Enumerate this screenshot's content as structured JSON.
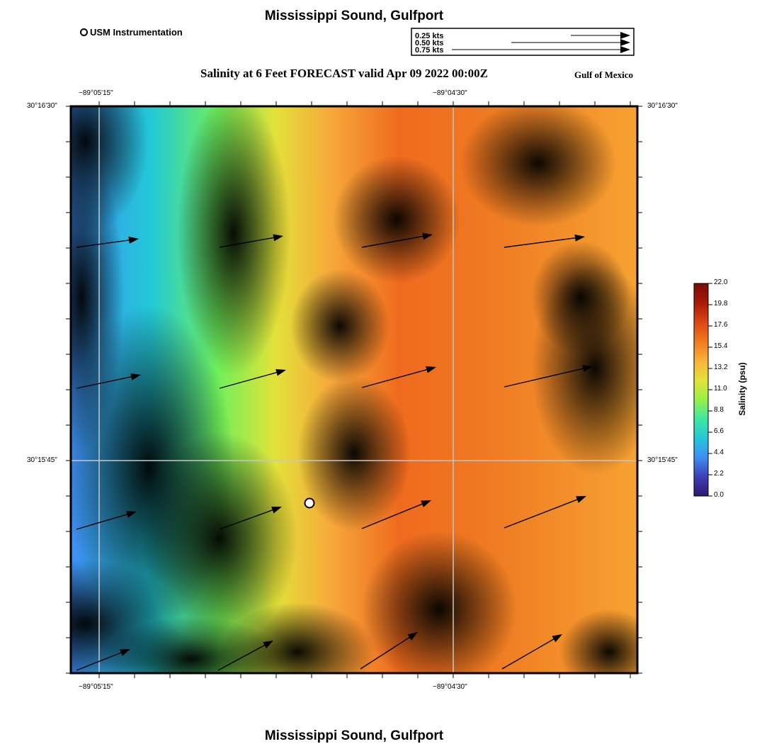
{
  "header": {
    "title": "Mississippi Sound, Gulfport",
    "subtitle": "Salinity at 6 Feet FORECAST valid Apr 09 2022 00:00Z",
    "region": "Gulf of Mexico",
    "footer_title": "Mississippi Sound, Gulfport"
  },
  "station_legend": {
    "label": "USM Instrumentation"
  },
  "speed_key": {
    "entries": [
      {
        "label": "0.25 kts",
        "speed": 0.25
      },
      {
        "label": "0.50 kts",
        "speed": 0.5
      },
      {
        "label": "0.75 kts",
        "speed": 0.75
      }
    ]
  },
  "axes": {
    "lon_top": [
      "−89°05'15\"",
      "−89°04'30\""
    ],
    "lon_bottom": [
      "−89°05'15\"",
      "−89°04'30\""
    ],
    "lat_left": [
      "30°16'30\"",
      "30°15'45\""
    ],
    "lat_right": [
      "30°16'30\"",
      "30°15'45\""
    ]
  },
  "colorbar": {
    "title": "Salinity (psu)",
    "min": 0.0,
    "max": 22.0,
    "ticks": [
      "0.0",
      "2.2",
      "4.4",
      "6.6",
      "8.8",
      "11.0",
      "13.2",
      "15.4",
      "17.6",
      "19.8",
      "22.0"
    ],
    "colors": [
      "#2b1a6e",
      "#3f3fb8",
      "#3f8ef5",
      "#22c8d8",
      "#3fe8a0",
      "#99f047",
      "#e2e23a",
      "#f7b23a",
      "#f07a1e",
      "#dc4612",
      "#a81a08",
      "#7a0c04"
    ]
  },
  "map_colors": {
    "deep_blue": "#4550c8",
    "blue": "#3f8ef5",
    "cyan": "#22c8d8",
    "green": "#99f047",
    "yellow": "#e2e23a",
    "light_orange": "#f7a83a",
    "orange": "#ef7a22",
    "dark_orange": "#e0501a"
  }
}
